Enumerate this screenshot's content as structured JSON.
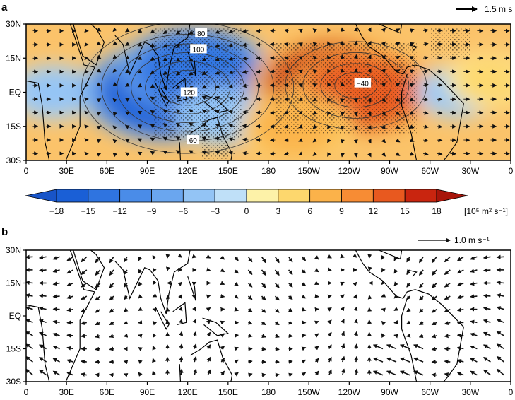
{
  "chart_data": [
    {
      "panel_label": "a",
      "type": "heatmap",
      "overlays": [
        "contour",
        "vector",
        "stippling"
      ],
      "title": "",
      "xlabel": "",
      "ylabel": "",
      "x_ticks": [
        "0",
        "30E",
        "60E",
        "90E",
        "120E",
        "150E",
        "180",
        "150W",
        "120W",
        "90W",
        "60W",
        "30W",
        "0"
      ],
      "y_ticks": [
        "30N",
        "15N",
        "EQ",
        "15S",
        "30S"
      ],
      "xlim": [
        0,
        360
      ],
      "ylim": [
        -30,
        30
      ],
      "reference_vector": {
        "label": "1.5 m s⁻¹",
        "magnitude": 1.5
      },
      "colorbar": {
        "levels": [
          -18,
          -15,
          -12,
          -9,
          -6,
          -3,
          0,
          3,
          6,
          9,
          12,
          15,
          18
        ],
        "tick_labels": [
          "−18",
          "−15",
          "−12",
          "−9",
          "−6",
          "−3",
          "0",
          "3",
          "6",
          "9",
          "12",
          "15",
          "18"
        ],
        "units_label": "[10⁵ m² s⁻¹]",
        "colors": [
          "#1a5fd6",
          "#2f74e0",
          "#4a8ce8",
          "#6aa6ef",
          "#93c4f5",
          "#bfe0f8",
          "#fdf2a8",
          "#fdd76d",
          "#fbb24a",
          "#f78c34",
          "#e8591f",
          "#c9250f"
        ]
      },
      "anomaly_field": [
        {
          "lon": 20,
          "lat": 0,
          "value": -5
        },
        {
          "lon": 105,
          "lat": 0,
          "value": -16
        },
        {
          "lon": 125,
          "lat": 10,
          "value": -13
        },
        {
          "lon": 145,
          "lat": -10,
          "value": -6
        },
        {
          "lon": 230,
          "lat": 3,
          "value": 16
        },
        {
          "lon": 250,
          "lat": 0,
          "value": 13
        },
        {
          "lon": 200,
          "lat": -15,
          "value": 8
        },
        {
          "lon": 320,
          "lat": 0,
          "value": -4
        },
        {
          "lon": 345,
          "lat": 5,
          "value": 5
        }
      ],
      "contour_labels": [
        {
          "text": "80",
          "lon": 130,
          "lat": 26
        },
        {
          "text": "100",
          "lon": 128,
          "lat": 19
        },
        {
          "text": "120",
          "lon": 121,
          "lat": 0
        },
        {
          "text": "60",
          "lon": 124,
          "lat": -21
        },
        {
          "text": "−40",
          "lon": 250,
          "lat": 4
        }
      ]
    },
    {
      "panel_label": "b",
      "type": "vector",
      "title": "",
      "xlabel": "",
      "ylabel": "",
      "x_ticks": [
        "0",
        "30E",
        "60E",
        "90E",
        "120E",
        "150E",
        "180",
        "150W",
        "120W",
        "90W",
        "60W",
        "30W",
        "0"
      ],
      "y_ticks": [
        "30N",
        "15N",
        "EQ",
        "15S",
        "30S"
      ],
      "xlim": [
        0,
        360
      ],
      "ylim": [
        -30,
        30
      ],
      "reference_vector": {
        "label": "1.0 m s⁻¹",
        "magnitude": 1.0
      }
    }
  ]
}
